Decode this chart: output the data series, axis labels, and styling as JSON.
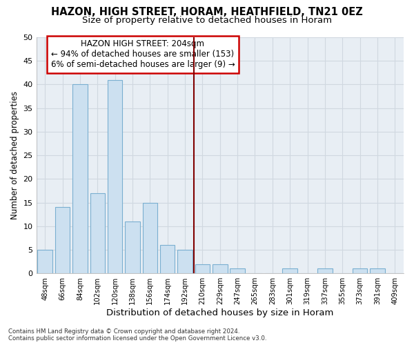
{
  "title": "HAZON, HIGH STREET, HORAM, HEATHFIELD, TN21 0EZ",
  "subtitle": "Size of property relative to detached houses in Horam",
  "xlabel": "Distribution of detached houses by size in Horam",
  "ylabel": "Number of detached properties",
  "footer_line1": "Contains HM Land Registry data © Crown copyright and database right 2024.",
  "footer_line2": "Contains public sector information licensed under the Open Government Licence v3.0.",
  "categories": [
    "48sqm",
    "66sqm",
    "84sqm",
    "102sqm",
    "120sqm",
    "138sqm",
    "156sqm",
    "174sqm",
    "192sqm",
    "210sqm",
    "229sqm",
    "247sqm",
    "265sqm",
    "283sqm",
    "301sqm",
    "319sqm",
    "337sqm",
    "355sqm",
    "373sqm",
    "391sqm",
    "409sqm"
  ],
  "values": [
    5,
    14,
    40,
    17,
    41,
    11,
    15,
    6,
    5,
    2,
    2,
    1,
    0,
    0,
    1,
    0,
    1,
    0,
    1,
    1,
    0
  ],
  "bar_color": "#cce0f0",
  "bar_edge_color": "#7aafd0",
  "grid_color": "#d0d8e0",
  "vline_color": "#800000",
  "annotation_box_text": "HAZON HIGH STREET: 204sqm\n← 94% of detached houses are smaller (153)\n6% of semi-detached houses are larger (9) →",
  "annotation_box_edge_color": "#cc0000",
  "annotation_fontsize": 8.5,
  "ylim": [
    0,
    50
  ],
  "background_color": "#ffffff",
  "plot_bg_color": "#e8eef4",
  "title_fontsize": 10.5,
  "subtitle_fontsize": 9.5,
  "ylabel_fontsize": 8.5,
  "xlabel_fontsize": 9.5
}
